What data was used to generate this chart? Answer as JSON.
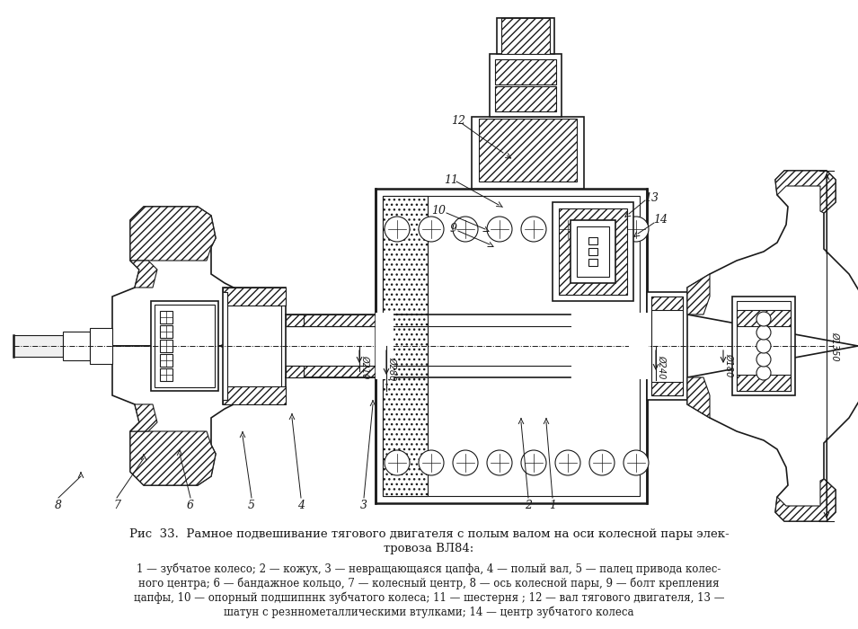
{
  "background_color": "#ffffff",
  "fig_width": 9.55,
  "fig_height": 7.0,
  "dpi": 100,
  "title_line1": "Рис  33.  Рамное подвешивание тягового двигателя с полым валом на оси колесной пары элек-",
  "title_line2": "тровоза ВЛ84:",
  "caption_lines": [
    "1 — зубчатое колесо; 2 — кожух, 3 — невращающаяся цапфа, 4 — полый вал, 5 — палец привода колес-",
    "ного центра; 6 — бандажное кольцо, 7 — колесный центр, 8 — ось колесной пары, 9 — болт крепления",
    "цапфы, 10 — опорный подшипннк зубчатого колеса; 11 — шестерня ; 12 — вал тягового двигателя, 13 —",
    "шатун с резннометаллическими втулками; 14 — центр зубчатого колеса"
  ],
  "line_color": "#1a1a1a",
  "text_color": "#1a1a1a",
  "title_fontsize": 9.5,
  "caption_fontsize": 9.0
}
